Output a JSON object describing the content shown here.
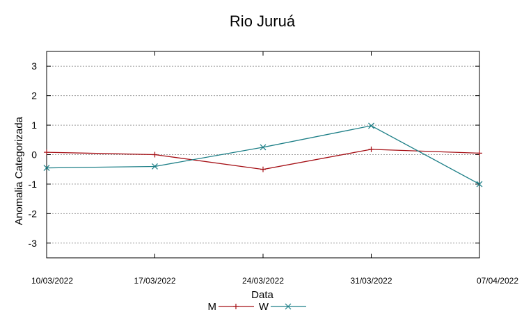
{
  "chart_data": {
    "type": "line",
    "title": "Rio Juruá",
    "xlabel": "Data",
    "ylabel": "Anomalia Categorizada",
    "categories": [
      "10/03/2022",
      "17/03/2022",
      "24/03/2022",
      "31/03/2022",
      "07/04/2022"
    ],
    "ylim": [
      -3.5,
      3.5
    ],
    "yticks": [
      3,
      2,
      1,
      0,
      -1,
      -2,
      -3
    ],
    "ytick_labels": [
      "3",
      "2",
      "1",
      "0",
      "-1",
      "-2",
      "-3"
    ],
    "grid": true,
    "legend_position": "bottom",
    "series": [
      {
        "name": "M",
        "color": "#a50f15",
        "marker": "plus",
        "values": [
          0.08,
          0.0,
          -0.5,
          0.18,
          0.05
        ]
      },
      {
        "name": "W",
        "color": "#1b7e86",
        "marker": "x",
        "values": [
          -0.45,
          -0.4,
          0.25,
          0.98,
          -1.0
        ]
      }
    ]
  }
}
